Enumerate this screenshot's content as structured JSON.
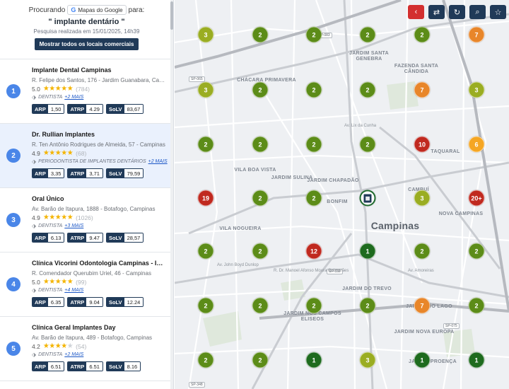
{
  "header": {
    "searching_label": "Procurando",
    "source_name": "Mapas do Google",
    "for_label": "para:",
    "query": "\" implante dentário \"",
    "search_date": "Pesquisa realizada em 15/01/2025, 14h39",
    "show_all_button": "Mostrar todos os locais comerciais"
  },
  "results": [
    {
      "rank": "1",
      "name": "Implante Dental Campinas",
      "address": "R. Felipe dos Santos, 176 - Jardim Guanabara, Campinas",
      "rating": "5.0",
      "stars": 5,
      "reviews": "(784)",
      "category": "DENTISTA",
      "more": "+2 MAIS",
      "arp_label": "ARP",
      "arp": "1,50",
      "atrp_label": "ATRP",
      "atrp": "4.29",
      "solv_label": "SoLV",
      "solv": "83,67"
    },
    {
      "rank": "2",
      "name": "Dr. Rullian Implantes",
      "address": "R. Ten Antônio Rodrigues de Almeida, 57 - Campinas",
      "rating": "4.9",
      "stars": 5,
      "reviews": "(68)",
      "category": "PERIODONTISTA DE IMPLANTES DENTÁRIOS",
      "more": "+2 MAIS",
      "arp_label": "ARP",
      "arp": "3,35",
      "atrp_label": "ATRP",
      "atrp": "3,71",
      "solv_label": "SoLV",
      "solv": "79,59"
    },
    {
      "rank": "3",
      "name": "Oral Único",
      "address": "Av. Barão de Itapura, 1888 - Botafogo, Campinas",
      "rating": "4.9",
      "stars": 5,
      "reviews": "(1026)",
      "category": "DENTISTA",
      "more": "+3 MAIS",
      "arp_label": "ARP",
      "arp": "6.13",
      "atrp_label": "ATRP",
      "atrp": "9.47",
      "solv_label": "SoLV",
      "solv": "28,57"
    },
    {
      "rank": "4",
      "name": "Clínica Vicorini Odontologia Campinas - Implantes",
      "address": "R. Comendador Querubim Uriel, 46 - Campinas",
      "rating": "5.0",
      "stars": 5,
      "reviews": "(99)",
      "category": "DENTISTA",
      "more": "+4 MAIS",
      "arp_label": "ARP",
      "arp": "6.35",
      "atrp_label": "ATRP",
      "atrp": "9.04",
      "solv_label": "SoLV",
      "solv": "12.24"
    },
    {
      "rank": "5",
      "name": "Clínica Geral Implantes Day",
      "address": "Av. Barão de Itapura, 489 - Botafogo, Campinas",
      "rating": "4.2",
      "stars": 4,
      "reviews": "(54)",
      "category": "DENTISTA",
      "more": "+2 MAIS",
      "arp_label": "ARP",
      "arp": "6.51",
      "atrp_label": "ATRP",
      "atrp": "6.51",
      "solv_label": "SoLV",
      "solv": "8.16"
    }
  ],
  "map": {
    "city_label": "Campinas",
    "neighborhoods": [
      "JARDIM SANTA GENEBRA",
      "FAZENDA SANTA CÂNDIDA",
      "CHÁCARA PRIMAVERA",
      "JARDIM CHAPADÃO",
      "BONFIM",
      "VILA BOA VISTA",
      "JARDIM SULINA",
      "VILA NOGUEIRA",
      "JARDIM DO TREVO",
      "JARDIM NOS CAMPOS ELISEOS",
      "JARDIM DO LAGO",
      "JARDIM NOVA EUROPA",
      "NOVA CAMPINAS",
      "CAMBUÍ",
      "TAQUARAL",
      "JARDIM PROENÇA"
    ],
    "roads": [
      "SP-065",
      "SP-332",
      "SP-348",
      "SP-083",
      "SP-075",
      "Av. John Boyd Dunlop",
      "Av. Lix da Cunha",
      "Av. Amoreiras",
      "R. Dr. Manoel Afonso Moura Guimarães"
    ],
    "grid": [
      [
        "3",
        "2",
        "2",
        "2",
        "2",
        "7"
      ],
      [
        "3",
        "2",
        "2",
        "2",
        "7",
        "3"
      ],
      [
        "2",
        "2",
        "2",
        "2",
        "10",
        "6"
      ],
      [
        "19",
        "2",
        "2",
        "center",
        "3",
        "20+"
      ],
      [
        "2",
        "2",
        "12",
        "1",
        "2",
        "2"
      ],
      [
        "2",
        "2",
        "2",
        "2",
        "7",
        "2"
      ],
      [
        "2",
        "2",
        "1",
        "3",
        "1",
        "1"
      ]
    ],
    "colors": {
      "1": "#1e6b1e",
      "2": "#5c8c18",
      "3": "#9aad22",
      "6": "#f5a623",
      "7": "#e8862a",
      "10": "#c0291f",
      "12": "#c0291f",
      "19": "#c0291f",
      "20+": "#c0291f"
    }
  },
  "toolbar": {
    "icons": [
      "back-icon",
      "swap-icon",
      "refresh-icon",
      "search-icon",
      "star-icon"
    ]
  }
}
